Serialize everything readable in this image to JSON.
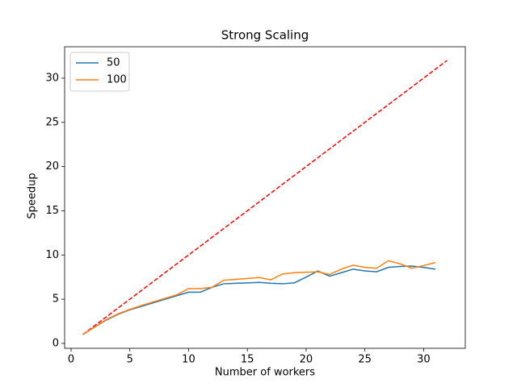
{
  "chart_data": {
    "type": "line",
    "title": "Strong Scaling",
    "x_label": "Number of workers",
    "y_label": "Speedup",
    "x": [
      1,
      2,
      3,
      4,
      5,
      6,
      7,
      8,
      9,
      10,
      11,
      12,
      13,
      14,
      15,
      16,
      17,
      18,
      19,
      20,
      21,
      22,
      23,
      24,
      25,
      26,
      27,
      28,
      29,
      30,
      31
    ],
    "series": [
      {
        "name": "50",
        "color": "#1f77b4",
        "values": [
          1.0,
          1.85,
          2.65,
          3.3,
          3.8,
          4.2,
          4.6,
          5.0,
          5.4,
          5.8,
          5.8,
          6.35,
          6.75,
          6.8,
          6.85,
          6.9,
          6.8,
          6.75,
          6.85,
          7.5,
          8.2,
          7.6,
          8.0,
          8.4,
          8.2,
          8.1,
          8.6,
          8.7,
          8.75,
          8.6,
          8.4
        ]
      },
      {
        "name": "100",
        "color": "#ff7f0e",
        "values": [
          1.0,
          1.85,
          2.7,
          3.35,
          3.85,
          4.3,
          4.7,
          5.1,
          5.5,
          6.2,
          6.2,
          6.35,
          7.15,
          7.25,
          7.35,
          7.45,
          7.2,
          7.85,
          8.0,
          8.05,
          8.1,
          7.8,
          8.4,
          8.85,
          8.6,
          8.5,
          9.35,
          9.0,
          8.5,
          8.8,
          9.15
        ]
      }
    ],
    "reference": {
      "x": [
        1,
        32
      ],
      "values": [
        1,
        32
      ],
      "color": "#ff0000",
      "dashed": true
    },
    "xlim": [
      -0.55,
      33.55
    ],
    "ylim": [
      -0.55,
      33.55
    ],
    "xticks": [
      0,
      5,
      10,
      15,
      20,
      25,
      30
    ],
    "yticks": [
      0,
      5,
      10,
      15,
      20,
      25,
      30
    ],
    "grid": false,
    "legend_position": "upper left"
  }
}
